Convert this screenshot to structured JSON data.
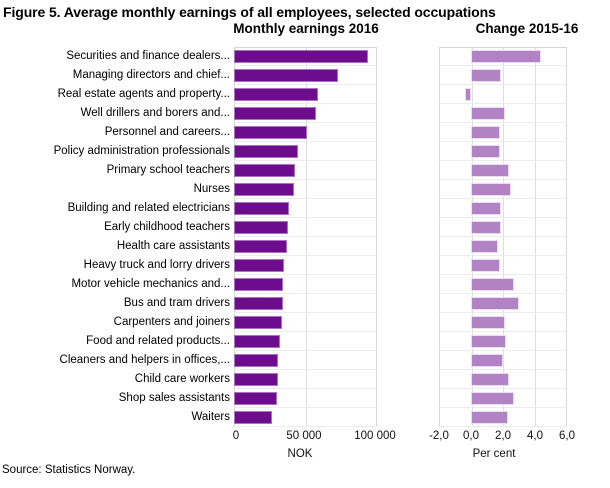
{
  "figure": {
    "title": "Figure 5. Average monthly earnings of all employees, selected occupations",
    "source": "Source: Statistics Norway."
  },
  "panels": {
    "left": {
      "title": "Monthly earnings 2016",
      "xlabel": "NOK"
    },
    "right": {
      "title": "Change 2015-16",
      "xlabel": "Per cent"
    }
  },
  "colors": {
    "earnings_bar": "#6d0d8e",
    "change_bar": "#b283c4",
    "plot_border": "#d6d6d6",
    "gridline": "#dedede",
    "row_separator": "#ececec"
  },
  "chart_data": [
    {
      "type": "bar",
      "orientation": "horizontal",
      "title": "Monthly earnings 2016",
      "xlabel": "NOK",
      "xlim": [
        0,
        100000
      ],
      "xticks": [
        "0",
        "50 000",
        "100 000"
      ],
      "grid": true,
      "categories": [
        "Securities and finance dealers...",
        "Managing directors and chief...",
        "Real estate agents and property...",
        "Well drillers and borers and...",
        "Personnel and careers...",
        "Policy administration professionals",
        "Primary school teachers",
        "Nurses",
        "Building and related electricians",
        "Early childhood teachers",
        "Health care assistants",
        "Heavy truck and lorry drivers",
        "Motor vehicle mechanics and...",
        "Bus and tram drivers",
        "Carpenters and joiners",
        "Food and related products...",
        "Cleaners and helpers in offices,...",
        "Child care workers",
        "Shop sales assistants",
        "Waiters"
      ],
      "values": [
        94000,
        73000,
        59000,
        57500,
        51000,
        45000,
        42500,
        42000,
        38500,
        37500,
        37000,
        35000,
        34500,
        34500,
        33500,
        32500,
        31000,
        31000,
        30000,
        26500
      ]
    },
    {
      "type": "bar",
      "orientation": "horizontal",
      "title": "Change 2015-16",
      "xlabel": "Per cent",
      "xlim": [
        -2,
        6
      ],
      "xticks": [
        "-2,0",
        "0,0",
        "2,0",
        "4,0",
        "6,0"
      ],
      "grid": true,
      "categories": [
        "Securities and finance dealers...",
        "Managing directors and chief...",
        "Real estate agents and property...",
        "Well drillers and borers and...",
        "Personnel and careers...",
        "Policy administration professionals",
        "Primary school teachers",
        "Nurses",
        "Building and related electricians",
        "Early childhood teachers",
        "Health care assistants",
        "Heavy truck and lorry drivers",
        "Motor vehicle mechanics and...",
        "Bus and tram drivers",
        "Carpenters and joiners",
        "Food and related products...",
        "Cleaners and helpers in offices,...",
        "Child care workers",
        "Shop sales assistants",
        "Waiters"
      ],
      "values": [
        4.4,
        1.9,
        -0.4,
        2.1,
        1.8,
        1.8,
        2.4,
        2.5,
        1.9,
        1.9,
        1.7,
        1.8,
        2.7,
        3.0,
        2.1,
        2.2,
        2.0,
        2.4,
        2.7,
        2.3
      ]
    }
  ]
}
